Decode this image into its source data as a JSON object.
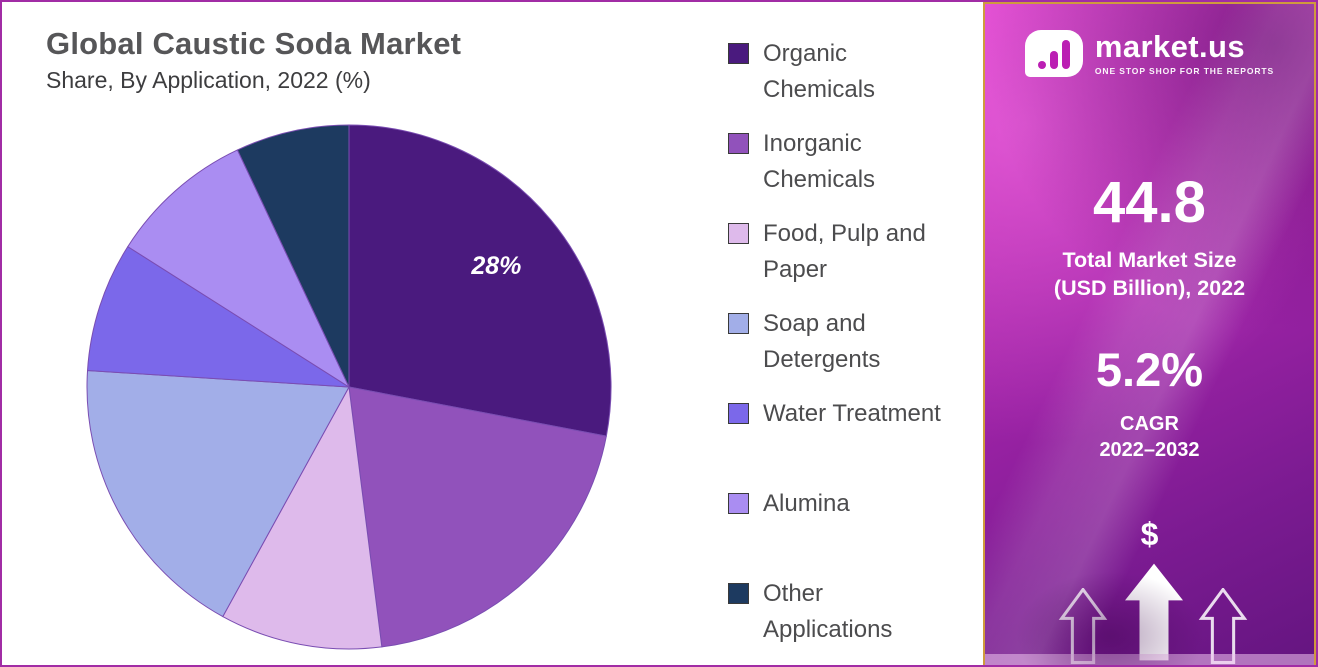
{
  "header": {
    "title": "Global Caustic Soda Market",
    "subtitle": "Share, By Application, 2022 (%)"
  },
  "chart_data": {
    "type": "pie",
    "title": "Global Caustic Soda Market Share, By Application, 2022 (%)",
    "units": "%",
    "legend_position": "right",
    "labels": [
      "Organic Chemicals",
      "Inorganic Chemicals",
      "Food, Pulp and Paper",
      "Soap and Detergents",
      "Water Treatment",
      "Alumina",
      "Other Applications"
    ],
    "values": [
      28,
      20,
      10,
      18,
      8,
      9,
      7
    ],
    "colors": [
      "#4a1a7e",
      "#9152bb",
      "#debaeb",
      "#a2aee8",
      "#7b68ea",
      "#aa8df2",
      "#1d3a60"
    ],
    "data_labels": [
      {
        "slice": "Organic Chemicals",
        "text": "28%"
      }
    ]
  },
  "sidebar": {
    "brand": {
      "name": "market.us",
      "tagline": "ONE STOP SHOP FOR THE REPORTS"
    },
    "market_size": {
      "value": "44.8",
      "label": "Total Market Size\n(USD Billion), 2022"
    },
    "cagr": {
      "value": "5.2%",
      "label": "CAGR\n2022–2032"
    },
    "dollar_symbol": "$"
  }
}
